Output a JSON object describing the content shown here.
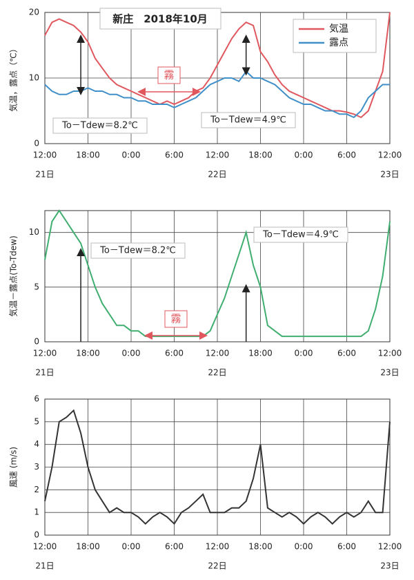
{
  "chart_data": [
    {
      "type": "line",
      "title": "新庄　2018年10月",
      "ylabel": "気温，露点（℃）",
      "x": [
        0,
        1,
        2,
        3,
        4,
        5,
        6,
        7,
        8,
        9,
        10,
        11,
        12,
        13,
        14,
        15,
        16,
        17,
        18,
        19,
        20,
        21,
        22,
        23,
        24,
        25,
        26,
        27,
        28,
        29,
        30,
        31,
        32,
        33,
        34,
        35,
        36,
        37,
        38,
        39,
        40,
        41,
        42,
        43,
        44,
        45,
        46,
        47,
        48
      ],
      "series": [
        {
          "name": "気温",
          "color": "#e0575e",
          "values": [
            16.5,
            18.5,
            19,
            18.5,
            18,
            17,
            15.5,
            13,
            11.5,
            10,
            9,
            8.5,
            8,
            7.5,
            7,
            6.5,
            6,
            6.5,
            6,
            6.5,
            7,
            8,
            8.5,
            10,
            12,
            14,
            16,
            17.5,
            18.5,
            18,
            14,
            12.5,
            10.5,
            9,
            8,
            7.5,
            7,
            6.5,
            6,
            5.5,
            5,
            5,
            4.8,
            4.5,
            4,
            5,
            8,
            11,
            20
          ]
        },
        {
          "name": "露点",
          "color": "#3f8fc9",
          "values": [
            9,
            8,
            7.5,
            7.5,
            8,
            8,
            8.5,
            8,
            8,
            7.5,
            7.5,
            7,
            7,
            6.5,
            6.5,
            6,
            6,
            6,
            5.5,
            6,
            6.5,
            7,
            8,
            9,
            9.5,
            10,
            10,
            9.5,
            11,
            10,
            10,
            9.5,
            9,
            8,
            7,
            6.5,
            6,
            6,
            5.5,
            5,
            5,
            4.5,
            4.5,
            4,
            5,
            7,
            8,
            9,
            9
          ]
        }
      ],
      "xlim": [
        0,
        48
      ],
      "xticks": [
        {
          "value": 0,
          "label": "12:00"
        },
        {
          "value": 6,
          "label": "18:00"
        },
        {
          "value": 12,
          "label": "0:00"
        },
        {
          "value": 18,
          "label": "6:00"
        },
        {
          "value": 24,
          "label": "12:00"
        },
        {
          "value": 30,
          "label": "18:00"
        },
        {
          "value": 36,
          "label": "0:00"
        },
        {
          "value": 42,
          "label": "6:00"
        },
        {
          "value": 48,
          "label": "12:00"
        }
      ],
      "day_labels": [
        {
          "value": 0,
          "label": "21日"
        },
        {
          "value": 24,
          "label": "22日"
        },
        {
          "value": 48,
          "label": "23日"
        }
      ],
      "ylim": [
        0,
        20
      ],
      "yticks": [
        0,
        10,
        20
      ],
      "grid": true,
      "legend": "upper right",
      "annotations": [
        "To－Tdew＝8.2℃",
        "To－Tdew＝4.9℃",
        "霧"
      ]
    },
    {
      "type": "line",
      "ylabel": "気温－露点(To-Tdew)",
      "x": [
        0,
        1,
        2,
        3,
        4,
        5,
        6,
        7,
        8,
        9,
        10,
        11,
        12,
        13,
        14,
        15,
        16,
        17,
        18,
        19,
        20,
        21,
        22,
        23,
        24,
        25,
        26,
        27,
        28,
        29,
        30,
        31,
        32,
        33,
        34,
        35,
        36,
        37,
        38,
        39,
        40,
        41,
        42,
        43,
        44,
        45,
        46,
        47,
        48
      ],
      "series": [
        {
          "name": "気温－露点",
          "color": "#3fae6f",
          "values": [
            7.5,
            11,
            12,
            11,
            10,
            9,
            7,
            5,
            3.5,
            2.5,
            1.5,
            1.5,
            1,
            1,
            0.5,
            0.5,
            0.5,
            0.5,
            0.5,
            0.5,
            0.5,
            0.5,
            0.5,
            1,
            2.5,
            4,
            6,
            8,
            10,
            7,
            5,
            1.5,
            1,
            0.5,
            0.5,
            0.5,
            0.5,
            0.5,
            0.5,
            0.5,
            0.5,
            0.5,
            0.5,
            0.5,
            0.5,
            1,
            3,
            6,
            11
          ]
        }
      ],
      "xlim": [
        0,
        48
      ],
      "xticks": [
        {
          "value": 0,
          "label": "12:00"
        },
        {
          "value": 6,
          "label": "18:00"
        },
        {
          "value": 12,
          "label": "0:00"
        },
        {
          "value": 18,
          "label": "6:00"
        },
        {
          "value": 24,
          "label": "12:00"
        },
        {
          "value": 30,
          "label": "18:00"
        },
        {
          "value": 36,
          "label": "0:00"
        },
        {
          "value": 42,
          "label": "6:00"
        },
        {
          "value": 48,
          "label": "12:00"
        }
      ],
      "day_labels": [
        {
          "value": 0,
          "label": "21日"
        },
        {
          "value": 24,
          "label": "22日"
        },
        {
          "value": 48,
          "label": "23日"
        }
      ],
      "ylim": [
        0,
        12
      ],
      "yticks": [
        0,
        5,
        10
      ],
      "grid": true,
      "annotations": [
        "To－Tdew＝8.2℃",
        "To－Tdew＝4.9℃",
        "霧"
      ]
    },
    {
      "type": "line",
      "ylabel": "風速 (m/s)",
      "x": [
        0,
        1,
        2,
        3,
        4,
        5,
        6,
        7,
        8,
        9,
        10,
        11,
        12,
        13,
        14,
        15,
        16,
        17,
        18,
        19,
        20,
        21,
        22,
        23,
        24,
        25,
        26,
        27,
        28,
        29,
        30,
        31,
        32,
        33,
        34,
        35,
        36,
        37,
        38,
        39,
        40,
        41,
        42,
        43,
        44,
        45,
        46,
        47,
        48
      ],
      "series": [
        {
          "name": "風速",
          "color": "#333333",
          "values": [
            1.5,
            3,
            5,
            5.2,
            5.5,
            4.5,
            3,
            2,
            1.5,
            1,
            1.2,
            1,
            1,
            0.8,
            0.5,
            0.8,
            1,
            0.8,
            0.5,
            1,
            1.2,
            1.5,
            1.8,
            1,
            1,
            1,
            1.2,
            1.2,
            1.5,
            2.5,
            4,
            1.2,
            1,
            0.8,
            1,
            0.8,
            0.5,
            0.8,
            1,
            0.8,
            0.5,
            0.8,
            1,
            0.8,
            1,
            1.5,
            1,
            1,
            5
          ]
        }
      ],
      "xlim": [
        0,
        48
      ],
      "xticks": [
        {
          "value": 0,
          "label": "12:00"
        },
        {
          "value": 6,
          "label": "18:00"
        },
        {
          "value": 12,
          "label": "0:00"
        },
        {
          "value": 18,
          "label": "6:00"
        },
        {
          "value": 24,
          "label": "12:00"
        },
        {
          "value": 30,
          "label": "18:00"
        },
        {
          "value": 36,
          "label": "0:00"
        },
        {
          "value": 42,
          "label": "6:00"
        },
        {
          "value": 48,
          "label": "12:00"
        }
      ],
      "day_labels": [
        {
          "value": 0,
          "label": "21日"
        },
        {
          "value": 24,
          "label": "22日"
        },
        {
          "value": 48,
          "label": "23日"
        }
      ],
      "ylim": [
        0,
        6
      ],
      "yticks": [
        0,
        1,
        2,
        3,
        4,
        5,
        6
      ],
      "grid": true
    }
  ]
}
